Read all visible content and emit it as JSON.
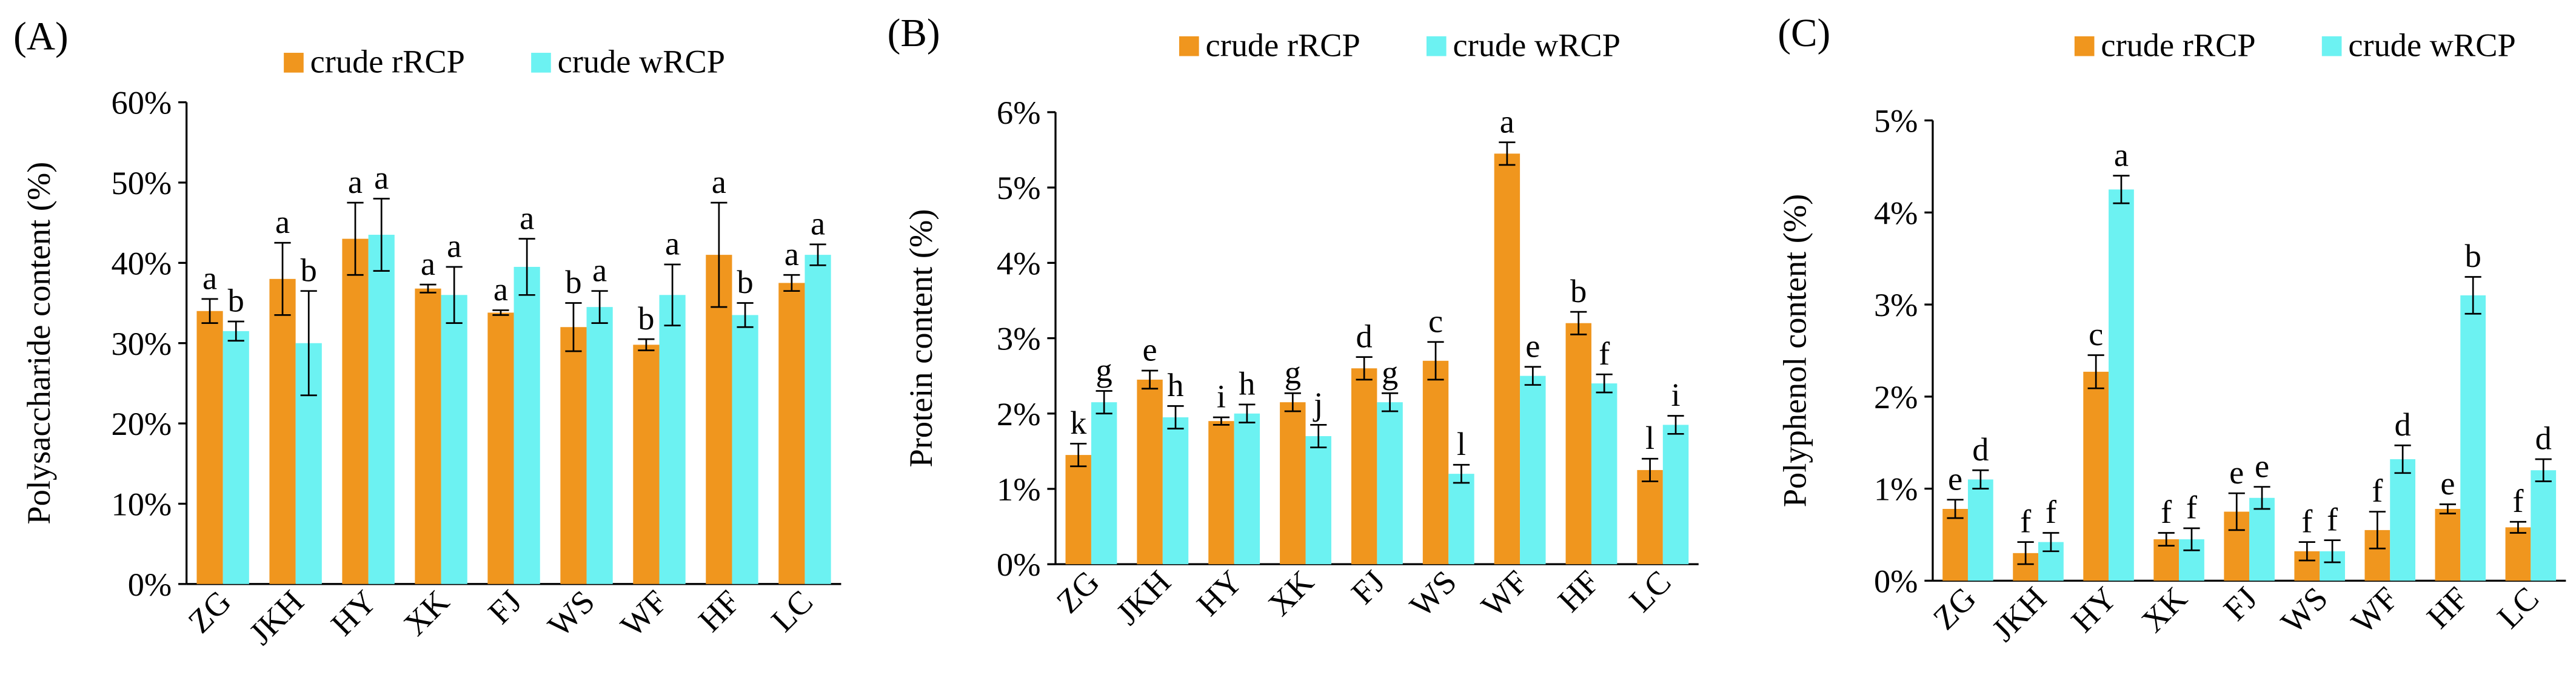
{
  "chart_data": [
    {
      "type": "bar",
      "panel_label": "(A)",
      "y_label": "Polysaccharide content (%)",
      "categories": [
        "ZG",
        "JKH",
        "HY",
        "XK",
        "FJ",
        "WS",
        "WF",
        "HF",
        "LC"
      ],
      "series": [
        {
          "name": "crude rRCP",
          "color": "#f0961e",
          "values": [
            34,
            38,
            43,
            36.8,
            33.8,
            32,
            29.8,
            41,
            37.5
          ],
          "errors": [
            1.5,
            4.5,
            4.5,
            0.5,
            0.3,
            3,
            0.7,
            6.5,
            1
          ],
          "letters": [
            "a",
            "a",
            "a",
            "a",
            "a",
            "b",
            "b",
            "a",
            "a"
          ]
        },
        {
          "name": "crude wRCP",
          "color": "#6cf2f2",
          "values": [
            31.5,
            30,
            43.5,
            36,
            39.5,
            34.5,
            36,
            33.5,
            41
          ],
          "errors": [
            1.2,
            6.5,
            4.5,
            3.5,
            3.5,
            2,
            3.8,
            1.5,
            1.3
          ],
          "letters": [
            "b",
            "b",
            "a",
            "a",
            "a",
            "a",
            "a",
            "b",
            "a"
          ]
        }
      ],
      "ylim": [
        0,
        60
      ],
      "yticks": [
        {
          "value": 0,
          "label": "0%"
        },
        {
          "value": 10,
          "label": "10%"
        },
        {
          "value": 20,
          "label": "20%"
        },
        {
          "value": 30,
          "label": "30%"
        },
        {
          "value": 40,
          "label": "40%"
        },
        {
          "value": 50,
          "label": "50%"
        },
        {
          "value": 60,
          "label": "60%"
        }
      ]
    },
    {
      "type": "bar",
      "panel_label": "(B)",
      "y_label": "Protein content (%)",
      "categories": [
        "ZG",
        "JKH",
        "HY",
        "XK",
        "FJ",
        "WS",
        "WF",
        "HF",
        "LC"
      ],
      "series": [
        {
          "name": "crude rRCP",
          "color": "#f0961e",
          "values": [
            1.45,
            2.45,
            1.9,
            2.15,
            2.6,
            2.7,
            5.45,
            3.2,
            1.25
          ],
          "errors": [
            0.15,
            0.12,
            0.05,
            0.12,
            0.15,
            0.25,
            0.15,
            0.15,
            0.15
          ],
          "letters": [
            "k",
            "e",
            "i",
            "g",
            "d",
            "c",
            "a",
            "b",
            "l"
          ]
        },
        {
          "name": "crude wRCP",
          "color": "#6cf2f2",
          "values": [
            2.15,
            1.95,
            2.0,
            1.7,
            2.15,
            1.2,
            2.5,
            2.4,
            1.85
          ],
          "errors": [
            0.15,
            0.15,
            0.12,
            0.15,
            0.12,
            0.12,
            0.12,
            0.12,
            0.12
          ],
          "letters": [
            "g",
            "h",
            "h",
            "j",
            "g",
            "l",
            "e",
            "f",
            "i"
          ]
        }
      ],
      "ylim": [
        0,
        6
      ],
      "yticks": [
        {
          "value": 0,
          "label": "0%"
        },
        {
          "value": 1,
          "label": "1%"
        },
        {
          "value": 2,
          "label": "2%"
        },
        {
          "value": 3,
          "label": "3%"
        },
        {
          "value": 4,
          "label": "4%"
        },
        {
          "value": 5,
          "label": "5%"
        },
        {
          "value": 6,
          "label": "6%"
        }
      ]
    },
    {
      "type": "bar",
      "panel_label": "(C)",
      "y_label": "Polyphenol content (%)",
      "categories": [
        "ZG",
        "JKH",
        "HY",
        "XK",
        "FJ",
        "WS",
        "WF",
        "HF",
        "LC"
      ],
      "series": [
        {
          "name": "crude rRCP",
          "color": "#f0961e",
          "values": [
            0.78,
            0.3,
            2.27,
            0.45,
            0.75,
            0.32,
            0.55,
            0.78,
            0.58
          ],
          "errors": [
            0.1,
            0.12,
            0.18,
            0.07,
            0.2,
            0.1,
            0.2,
            0.05,
            0.06
          ],
          "letters": [
            "e",
            "f",
            "c",
            "f",
            "e",
            "f",
            "f",
            "e",
            "f"
          ]
        },
        {
          "name": "crude wRCP",
          "color": "#6cf2f2",
          "values": [
            1.1,
            0.42,
            4.25,
            0.45,
            0.9,
            0.32,
            1.32,
            3.1,
            1.2
          ],
          "errors": [
            0.1,
            0.1,
            0.15,
            0.12,
            0.12,
            0.12,
            0.15,
            0.2,
            0.12
          ],
          "letters": [
            "d",
            "f",
            "a",
            "f",
            "e",
            "f",
            "d",
            "b",
            "d"
          ]
        }
      ],
      "ylim": [
        0,
        5
      ],
      "yticks": [
        {
          "value": 0,
          "label": "0%"
        },
        {
          "value": 1,
          "label": "1%"
        },
        {
          "value": 2,
          "label": "2%"
        },
        {
          "value": 3,
          "label": "3%"
        },
        {
          "value": 4,
          "label": "4%"
        },
        {
          "value": 5,
          "label": "5%"
        }
      ]
    }
  ]
}
